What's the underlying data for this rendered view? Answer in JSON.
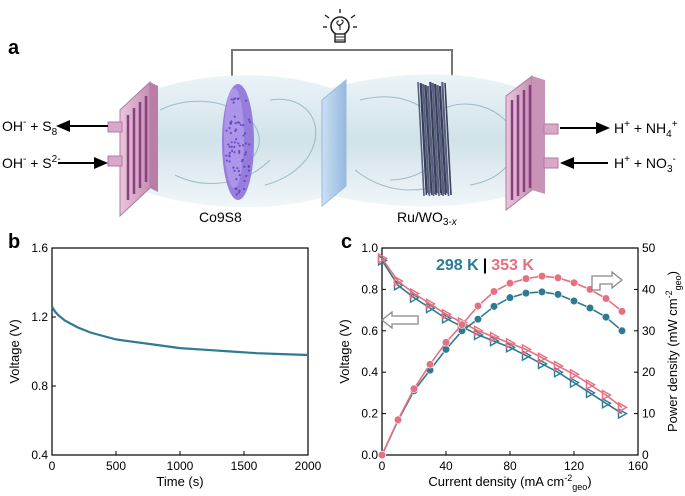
{
  "panel_a": {
    "label": "a",
    "left_out": {
      "pre": "OH",
      "sup1": "-",
      "mid": " + S",
      "sub": "8"
    },
    "left_in": {
      "pre": "OH",
      "sup1": "-",
      "mid": " + S",
      "sup2": "2-"
    },
    "right_out": {
      "pre": "H",
      "sup1": "+",
      "mid": " + NH",
      "sub": "4",
      "sup2": "+"
    },
    "right_in": {
      "pre": "H",
      "sup1": "+",
      "mid": " + NO",
      "sub": "3",
      "sup2": "-"
    },
    "anode_label": "Co9S8",
    "cathode_label": "Ru/WO3-x",
    "cathode_label_parts": {
      "main": "Ru/WO",
      "sub": "3-",
      "subx": "x"
    }
  },
  "colors": {
    "teal": "#2e7a93",
    "pink": "#e66f80",
    "plate": "#d9a8c8",
    "plate_dark": "#a0609a",
    "purple": "#8a6ad8",
    "dark_rods": "#3a3f5a",
    "membrane": "#a9c8ea"
  },
  "icons": {
    "bulb": "lightbulb-icon"
  },
  "panel_b_meta": {
    "label": "b"
  },
  "panel_c_meta": {
    "label": "c",
    "legend_298": "298 K",
    "legend_sep": "|",
    "legend_353": "353 K"
  },
  "chart_data": [
    {
      "id": "b",
      "type": "line",
      "xlabel": "Time (s)",
      "ylabel": "Voltage (V)",
      "xlim": [
        0,
        2000
      ],
      "ylim": [
        0.4,
        1.6
      ],
      "xticks": [
        "0",
        "500",
        "1000",
        "1500",
        "2000"
      ],
      "yticks": [
        "0.4",
        "0.8",
        "1.2",
        "1.6"
      ],
      "series": [
        {
          "x": [
            0,
            25,
            50,
            100,
            200,
            300,
            400,
            500,
            600,
            800,
            1000,
            1200,
            1400,
            1600,
            1800,
            2000
          ],
          "y": [
            1.26,
            1.23,
            1.21,
            1.18,
            1.14,
            1.11,
            1.09,
            1.07,
            1.06,
            1.04,
            1.02,
            1.01,
            1.0,
            0.99,
            0.985,
            0.98
          ],
          "color": "#2e7a93"
        }
      ]
    },
    {
      "id": "c",
      "type": "line",
      "xlabel": "Current density (mA cm-2geo)",
      "xlabel_parts": {
        "main": "Current density (mA cm",
        "sup": "-2",
        "sub": "geo",
        "end": ")"
      },
      "ylabel_left": "Voltage (V)",
      "ylabel_right_parts": {
        "main": "Power density (mW cm",
        "sup": "-2",
        "sub": "geo",
        "end": ")"
      },
      "xlim": [
        0,
        160
      ],
      "ylim_left": [
        0,
        1.0
      ],
      "ylim_right": [
        0,
        50
      ],
      "xticks": [
        "0",
        "40",
        "80",
        "120",
        "160"
      ],
      "yticks_left": [
        "0.0",
        "0.2",
        "0.4",
        "0.6",
        "0.8",
        "1.0"
      ],
      "yticks_right": [
        "0",
        "10",
        "20",
        "30",
        "40",
        "50"
      ],
      "x": [
        0,
        10,
        20,
        30,
        40,
        50,
        60,
        70,
        80,
        90,
        100,
        110,
        120,
        130,
        140,
        150
      ],
      "series": [
        {
          "name": "298 K",
          "axis": "left",
          "marker": "triangle",
          "color": "#2e7a93",
          "values": [
            0.94,
            0.82,
            0.76,
            0.71,
            0.66,
            0.62,
            0.58,
            0.55,
            0.52,
            0.48,
            0.44,
            0.4,
            0.35,
            0.3,
            0.25,
            0.2
          ]
        },
        {
          "name": "353 K",
          "axis": "left",
          "marker": "triangle",
          "color": "#e66f80",
          "values": [
            0.95,
            0.84,
            0.78,
            0.73,
            0.68,
            0.64,
            0.6,
            0.57,
            0.54,
            0.51,
            0.47,
            0.43,
            0.39,
            0.34,
            0.29,
            0.23
          ]
        },
        {
          "name": "298 K",
          "axis": "right",
          "marker": "circle",
          "color": "#2e7a93",
          "values": [
            0,
            8.3,
            15.5,
            20.5,
            25.5,
            30.0,
            32.8,
            35.9,
            38.0,
            39.1,
            39.4,
            38.8,
            37.2,
            35.5,
            33.3,
            30.0
          ]
        },
        {
          "name": "353 K",
          "axis": "right",
          "marker": "circle",
          "color": "#e66f80",
          "values": [
            0,
            8.5,
            16.0,
            21.9,
            27.2,
            31.5,
            36.0,
            39.5,
            41.5,
            42.6,
            43.2,
            42.8,
            41.6,
            40.0,
            37.8,
            34.7
          ]
        }
      ]
    }
  ]
}
